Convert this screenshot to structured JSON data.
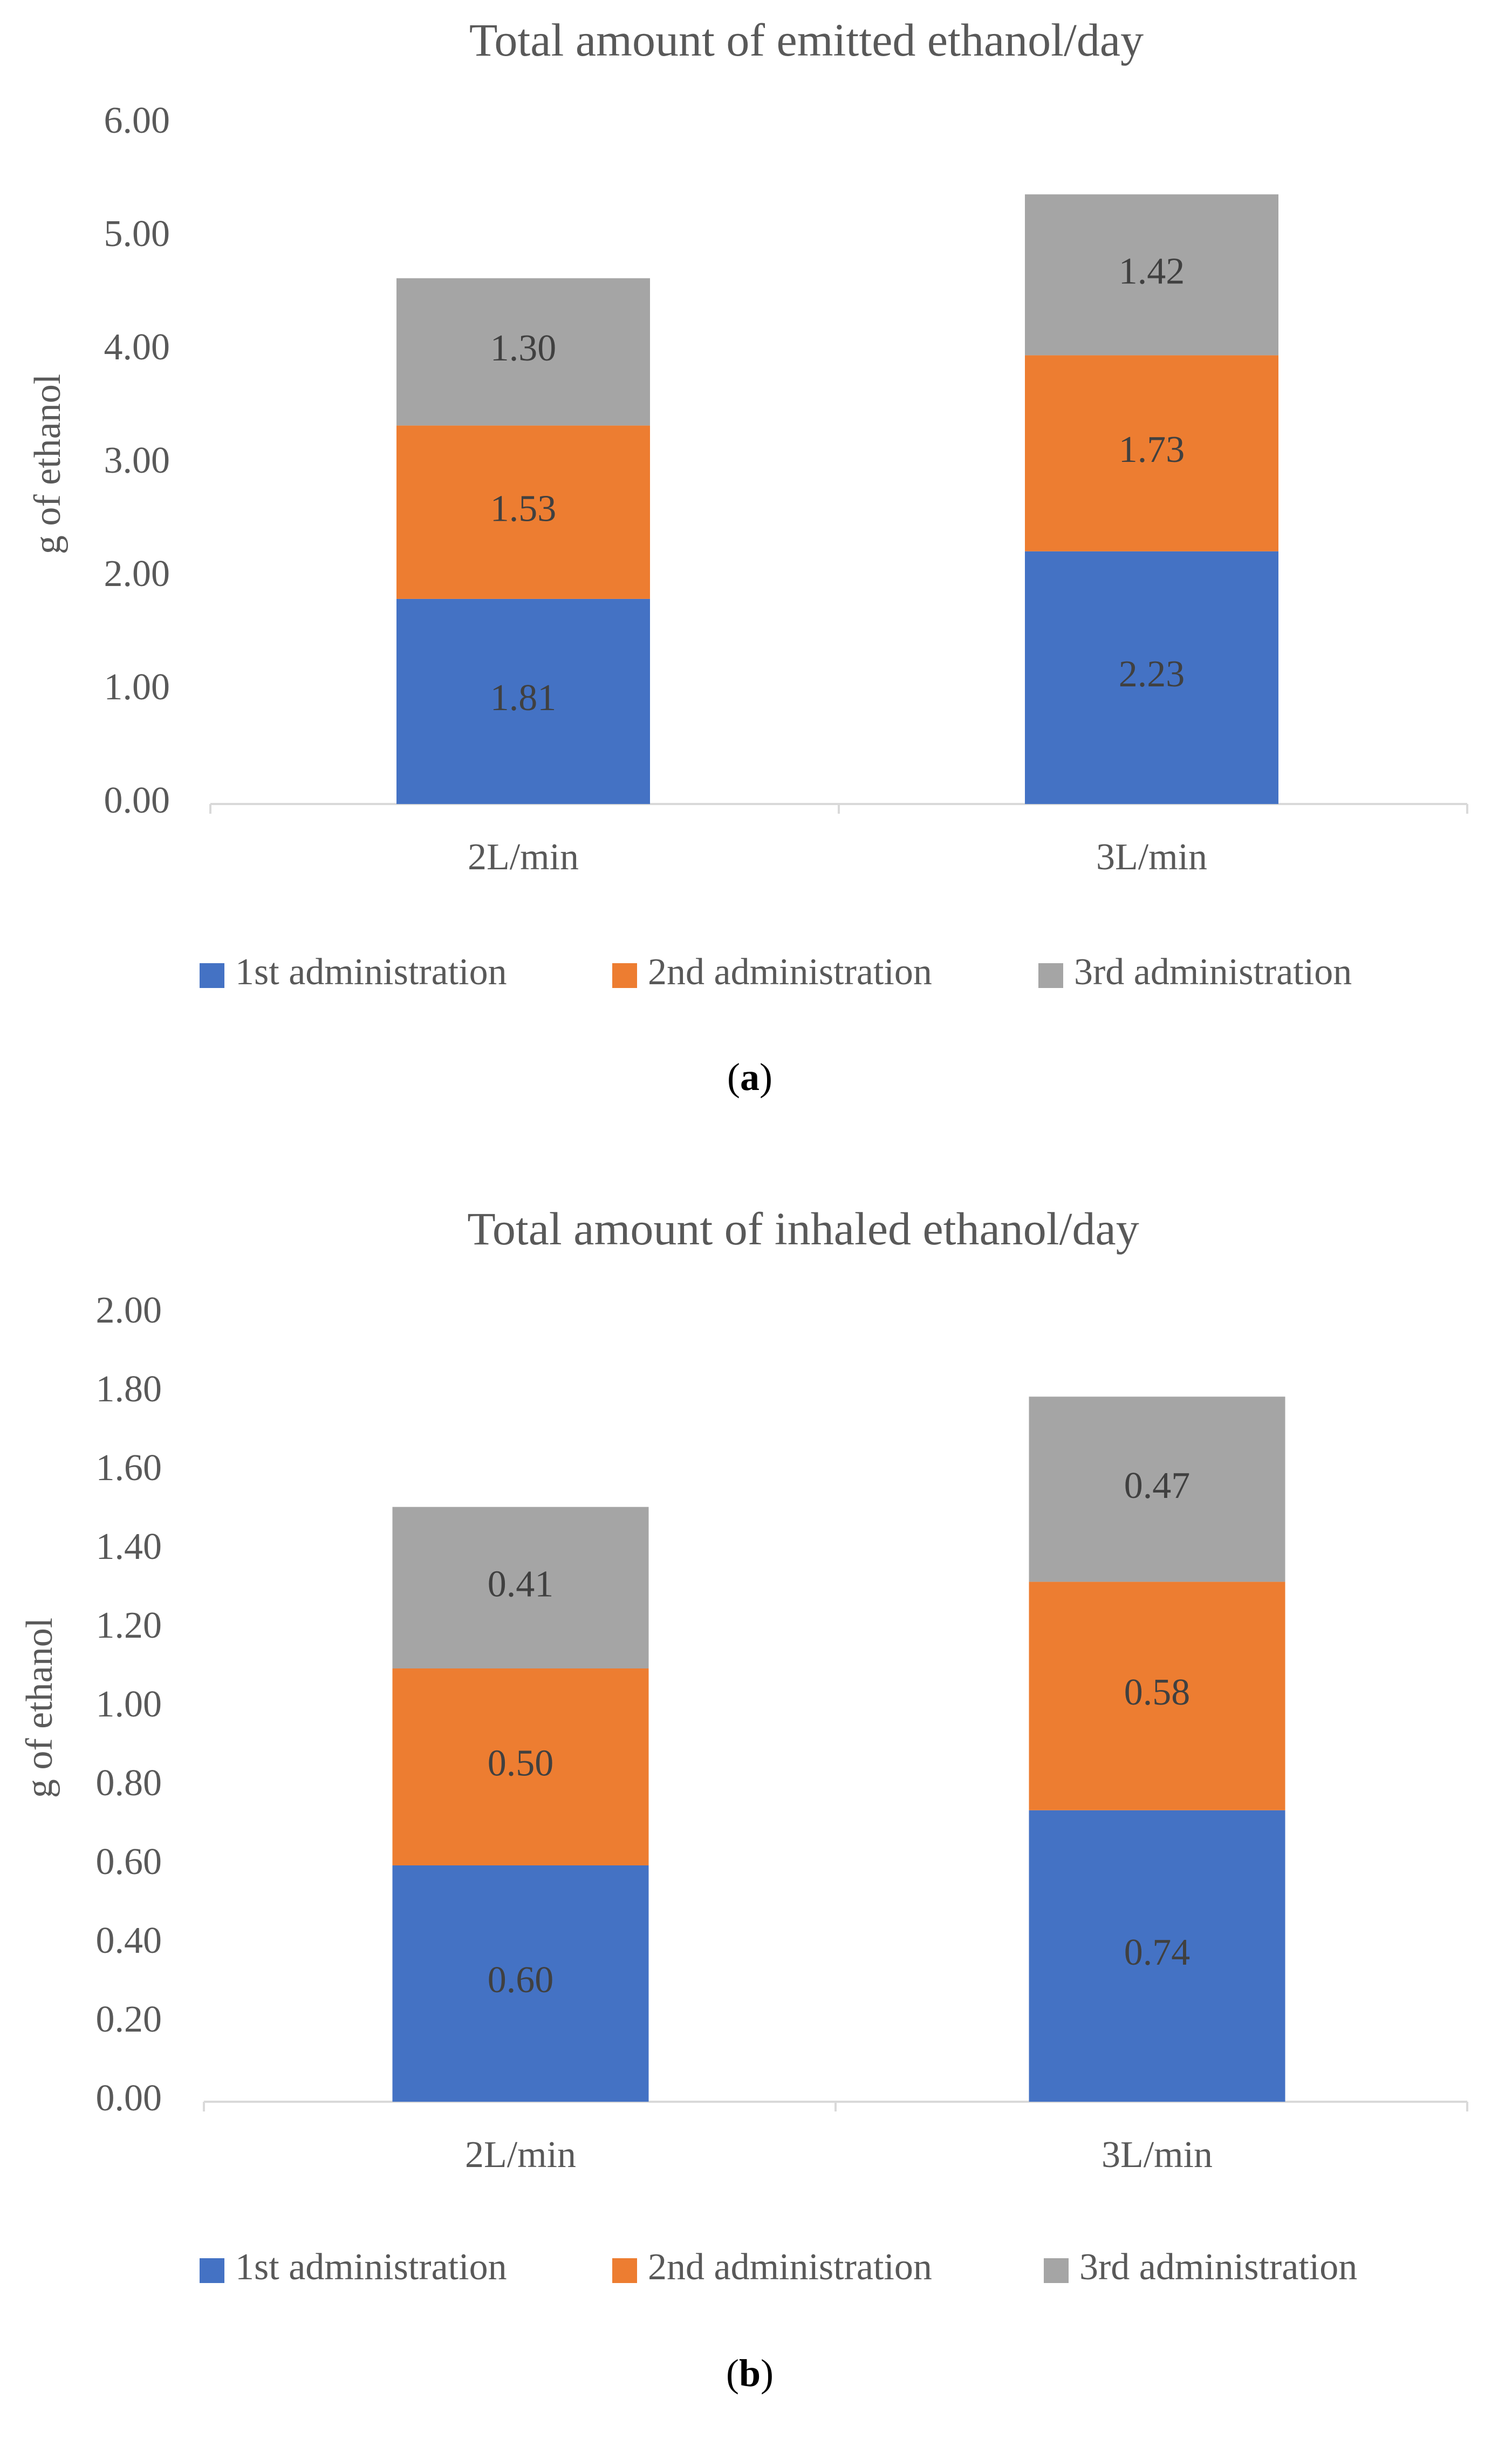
{
  "chart_data": [
    {
      "type": "bar",
      "stacked": true,
      "title": "Total amount of emitted ethanol/day",
      "xlabel": "",
      "ylabel": "g of ethanol",
      "categories": [
        "2L/min",
        "3L/min"
      ],
      "series": [
        {
          "name": "1st administration",
          "values": [
            1.81,
            2.23
          ],
          "labels": [
            "1.81",
            "2.23"
          ],
          "color": "#4472C4"
        },
        {
          "name": "2nd administration",
          "values": [
            1.53,
            1.73
          ],
          "labels": [
            "1.53",
            "1.73"
          ],
          "color": "#ED7D31"
        },
        {
          "name": "3rd administration",
          "values": [
            1.3,
            1.42
          ],
          "labels": [
            "1.30",
            "1.42"
          ],
          "color": "#A5A5A5"
        }
      ],
      "ylim": [
        0,
        6
      ],
      "yticks": [
        "0.00",
        "1.00",
        "2.00",
        "3.00",
        "4.00",
        "5.00",
        "6.00"
      ],
      "grid": false,
      "legend": "bottom",
      "caption_open": "(",
      "caption_letter": "a",
      "caption_close": ")"
    },
    {
      "type": "bar",
      "stacked": true,
      "title": "Total amount of inhaled ethanol/day",
      "xlabel": "",
      "ylabel": "g of ethanol",
      "categories": [
        "2L/min",
        "3L/min"
      ],
      "series": [
        {
          "name": "1st administration",
          "values": [
            0.6,
            0.74
          ],
          "labels": [
            "0.60",
            "0.74"
          ],
          "color": "#4472C4"
        },
        {
          "name": "2nd administration",
          "values": [
            0.5,
            0.58
          ],
          "labels": [
            "0.50",
            "0.58"
          ],
          "color": "#ED7D31"
        },
        {
          "name": "3rd administration",
          "values": [
            0.41,
            0.47
          ],
          "labels": [
            "0.41",
            "0.47"
          ],
          "color": "#A5A5A5"
        }
      ],
      "ylim": [
        0,
        2
      ],
      "yticks": [
        "0.00",
        "0.20",
        "0.40",
        "0.60",
        "0.80",
        "1.00",
        "1.20",
        "1.40",
        "1.60",
        "1.80",
        "2.00"
      ],
      "grid": false,
      "legend": "bottom",
      "caption_open": "(",
      "caption_letter": "b",
      "caption_close": ")"
    }
  ]
}
